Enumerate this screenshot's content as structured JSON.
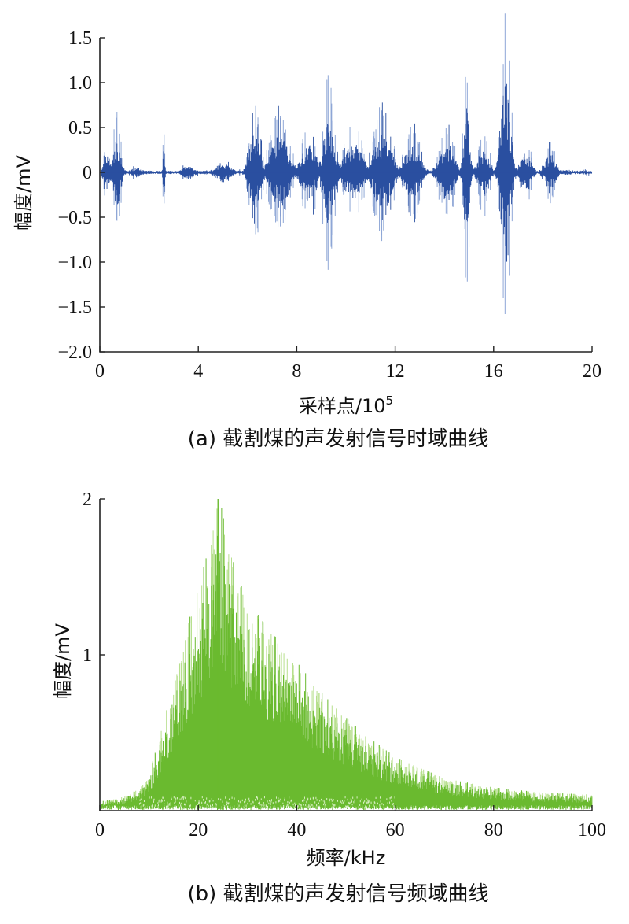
{
  "chart_data": [
    {
      "type": "line",
      "panel": "a",
      "caption": "(a) 截割煤的声发射信号时域曲线",
      "xlabel_text": "采样点/10",
      "xlabel_sup": "5",
      "ylabel": "幅度/mV",
      "xlim": [
        0,
        20
      ],
      "ylim": [
        -2.0,
        1.5
      ],
      "xticks": [
        0,
        4,
        8,
        12,
        16,
        20
      ],
      "xtick_labels": [
        "0",
        "4",
        "8",
        "12",
        "16",
        "20"
      ],
      "yticks": [
        1.5,
        1.0,
        0.5,
        0,
        -0.5,
        -1.0,
        -1.5,
        -2.0
      ],
      "ytick_labels": [
        "1.5",
        "1.0",
        "0.5",
        "0",
        "−0.5",
        "−1.0",
        "−1.5",
        "−2.0"
      ],
      "grid": false,
      "colors": {
        "dense": "#2a4fa0",
        "light": "#8ea6d6"
      },
      "bursts": [
        {
          "x": 0.3,
          "amp": 0.35,
          "w": 0.2
        },
        {
          "x": 0.7,
          "amp": 0.7,
          "w": 0.2
        },
        {
          "x": 1.5,
          "amp": 0.1,
          "w": 0.3
        },
        {
          "x": 2.6,
          "amp": 0.5,
          "w": 0.05
        },
        {
          "x": 3.6,
          "amp": 0.15,
          "w": 0.3
        },
        {
          "x": 5.0,
          "amp": 0.2,
          "w": 0.4
        },
        {
          "x": 6.3,
          "amp": 0.8,
          "w": 0.3
        },
        {
          "x": 7.3,
          "amp": 0.75,
          "w": 0.5
        },
        {
          "x": 8.5,
          "amp": 0.6,
          "w": 0.4
        },
        {
          "x": 9.3,
          "amp": 1.1,
          "w": 0.3
        },
        {
          "x": 10.3,
          "amp": 0.6,
          "w": 0.5
        },
        {
          "x": 11.5,
          "amp": 0.8,
          "w": 0.5
        },
        {
          "x": 12.7,
          "amp": 0.6,
          "w": 0.4
        },
        {
          "x": 14.1,
          "amp": 0.6,
          "w": 0.4
        },
        {
          "x": 14.9,
          "amp": 1.4,
          "w": 0.15
        },
        {
          "x": 15.6,
          "amp": 0.5,
          "w": 0.3
        },
        {
          "x": 16.5,
          "amp": 1.9,
          "w": 0.25
        },
        {
          "x": 17.3,
          "amp": 0.4,
          "w": 0.3
        },
        {
          "x": 18.3,
          "amp": 0.35,
          "w": 0.3
        },
        {
          "x": 19.0,
          "amp": 0.05,
          "w": 0.6
        }
      ]
    },
    {
      "type": "line",
      "panel": "b",
      "caption": "(b) 截割煤的声发射信号频域曲线",
      "xlabel": "频率/kHz",
      "ylabel": "幅度/mV",
      "xlim": [
        0,
        100
      ],
      "ylim": [
        0,
        2
      ],
      "xticks": [
        0,
        20,
        40,
        60,
        80,
        100
      ],
      "xtick_labels": [
        "0",
        "20",
        "40",
        "60",
        "80",
        "100"
      ],
      "yticks": [
        2,
        1
      ],
      "ytick_labels": [
        "2",
        "1"
      ],
      "grid": false,
      "colors": {
        "fill": "#6aba2f",
        "light": "#b6df8c"
      },
      "envelope": {
        "x": [
          0,
          4,
          8,
          10,
          12,
          14,
          16,
          18,
          20,
          22,
          24,
          26,
          28,
          30,
          34,
          38,
          42,
          46,
          50,
          55,
          60,
          65,
          70,
          80,
          90,
          100
        ],
        "y": [
          0.05,
          0.07,
          0.12,
          0.2,
          0.4,
          0.62,
          0.85,
          1.05,
          1.25,
          1.45,
          1.8,
          1.5,
          1.3,
          1.18,
          1.02,
          0.9,
          0.76,
          0.63,
          0.52,
          0.4,
          0.3,
          0.24,
          0.18,
          0.13,
          0.1,
          0.09
        ]
      },
      "peak": {
        "x": 24,
        "y": 2.0
      }
    }
  ]
}
